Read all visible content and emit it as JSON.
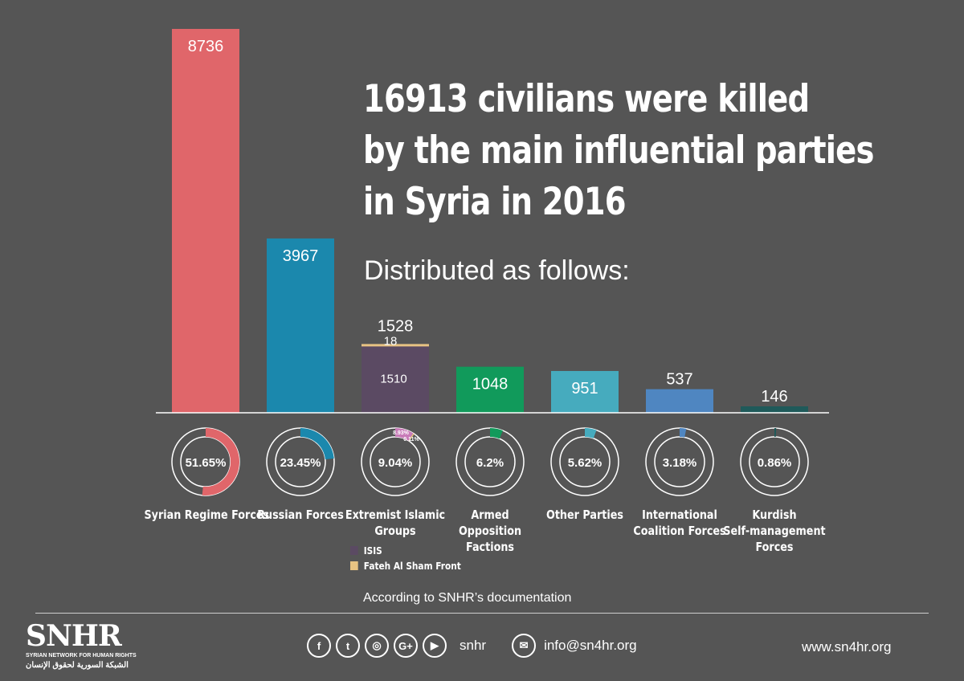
{
  "chart_data": {
    "type": "bar",
    "title_lines": [
      "16913 civilians were killed",
      "by the main influential parties",
      "in Syria in 2016"
    ],
    "subtitle": "Distributed as follows:",
    "categories": [
      "Syrian Regime Forces",
      "Russian Forces",
      "Extremist Islamic Groups",
      "Armed Opposition Factions",
      "Other Parties",
      "International Coalition Forces",
      "Kurdish Self-management Forces"
    ],
    "values": [
      8736,
      3967,
      1528,
      1048,
      951,
      537,
      146
    ],
    "value_labels": [
      "8736",
      "3967",
      "1528",
      "1048",
      "951",
      "537",
      "146"
    ],
    "percent_labels": [
      "51.65%",
      "23.45%",
      "9.04%",
      "6.2%",
      "5.62%",
      "3.18%",
      "0.86%"
    ],
    "percents": [
      51.65,
      23.45,
      9.04,
      6.2,
      5.62,
      3.18,
      0.86
    ],
    "colors": [
      "#e0666a",
      "#1b88ad",
      "#5b4a63",
      "#119a5b",
      "#46abbe",
      "#4f86c1",
      "#1f5a5a"
    ],
    "stacked_segments": {
      "category": "Extremist Islamic Groups",
      "segments": [
        {
          "name": "ISIS",
          "value": 1510,
          "label": "1510",
          "percent": 8.93,
          "percent_label": "8.93%",
          "color": "#5b4a63"
        },
        {
          "name": "Fateh Al Sham Front",
          "value": 18,
          "label": "18",
          "percent": 0.11,
          "percent_label": "0.11%",
          "color": "#e8c383"
        }
      ]
    },
    "ylim": [
      0,
      8736
    ],
    "grid": false,
    "legend_placement": "below-chart"
  },
  "legend": [
    {
      "label": "ISIS",
      "color": "#5b4a63"
    },
    {
      "label": "Fateh Al Sham Front",
      "color": "#e8c383"
    }
  ],
  "source": "According to SNHR’s documentation",
  "footer": {
    "logo_main": "SNHR",
    "logo_sub": "SYRIAN NETWORK FOR HUMAN RIGHTS",
    "logo_arabic": "الشبكة السورية لحقوق الإنسان",
    "social_icons": [
      {
        "name": "facebook-icon",
        "glyph": "f"
      },
      {
        "name": "twitter-icon",
        "glyph": "t"
      },
      {
        "name": "instagram-icon",
        "glyph": "◎"
      },
      {
        "name": "google-plus-icon",
        "glyph": "G+"
      },
      {
        "name": "youtube-icon",
        "glyph": "▶"
      }
    ],
    "social_handle": "snhr",
    "email_icon_glyph": "✉",
    "email": "info@sn4hr.org",
    "website": "www.sn4hr.org"
  }
}
